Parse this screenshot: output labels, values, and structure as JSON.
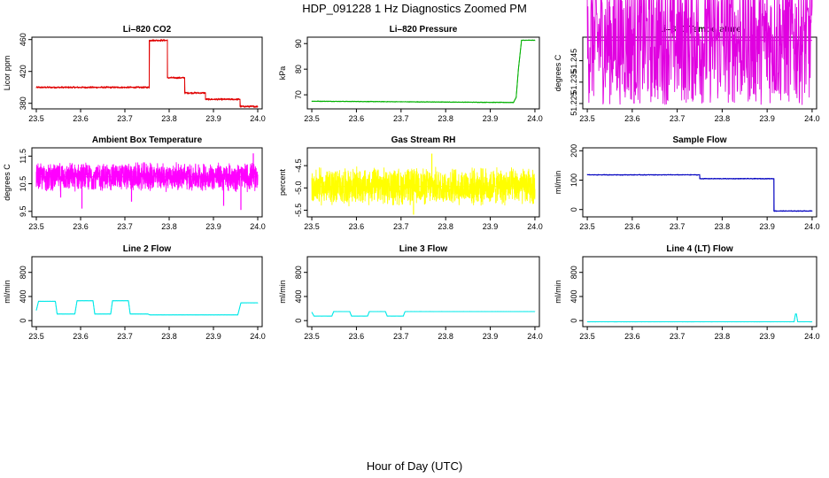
{
  "figure": {
    "title": "HDP_091228  1 Hz Diagnostics Zoomed PM",
    "xlabel": "Hour of Day (UTC)"
  },
  "chart_data": [
    {
      "type": "line",
      "title": "Li–820 CO2",
      "xlabel": "",
      "ylabel": "Licor ppm",
      "color": "#e00000",
      "noise": 1.2,
      "xlim": [
        23.49,
        24.01
      ],
      "xticks": [
        "23.5",
        "23.6",
        "23.7",
        "23.8",
        "23.9",
        "24.0"
      ],
      "ylim": [
        373,
        463
      ],
      "yticks": [
        "380",
        "420",
        "460"
      ],
      "series": [
        {
          "name": "",
          "x": [
            23.5,
            23.755,
            23.755,
            23.796,
            23.796,
            23.835,
            23.835,
            23.882,
            23.882,
            23.96,
            23.96,
            24.0
          ],
          "y": [
            400,
            400,
            459,
            459,
            412,
            412,
            393,
            393,
            385,
            385,
            376,
            376
          ]
        }
      ],
      "spikes": []
    },
    {
      "type": "line",
      "title": "Li–820 Pressure",
      "xlabel": "",
      "ylabel": "kPa",
      "color": "#00b000",
      "noise": 0.15,
      "xlim": [
        23.49,
        24.01
      ],
      "xticks": [
        "23.5",
        "23.6",
        "23.7",
        "23.8",
        "23.9",
        "24.0"
      ],
      "ylim": [
        64.5,
        92.5
      ],
      "yticks": [
        "70",
        "80",
        "90"
      ],
      "series": [
        {
          "name": "",
          "x": [
            23.5,
            23.952,
            23.958,
            23.963,
            23.97,
            24.0
          ],
          "y": [
            67.5,
            67,
            69,
            80,
            91.3,
            91.3
          ]
        }
      ],
      "spikes": []
    },
    {
      "type": "line",
      "title": "Li–820 Temperature",
      "xlabel": "",
      "ylabel": "degrees C",
      "color": "#e000e0",
      "noise": 0.03,
      "xlim": [
        23.49,
        24.01
      ],
      "xticks": [
        "23.5",
        "23.6",
        "23.7",
        "23.8",
        "23.9",
        "24.0"
      ],
      "ylim": [
        51.2225,
        51.256
      ],
      "yticks": [
        "51.225",
        "51.235",
        "51.245"
      ],
      "series": [
        {
          "name": "",
          "x": [
            23.5,
            24.0
          ],
          "y": [
            51.2545,
            51.2545
          ]
        }
      ],
      "spikes": [
        {
          "x": 23.604,
          "y": 51.225
        },
        {
          "x": 23.605,
          "y": 51.2305
        }
      ]
    },
    {
      "type": "line",
      "title": "Ambient Box Temperature",
      "xlabel": "",
      "ylabel": "degrees C",
      "color": "#ff00ff",
      "noise": 0.55,
      "noise_mode": "band",
      "xlim": [
        23.49,
        24.01
      ],
      "xticks": [
        "23.5",
        "23.6",
        "23.7",
        "23.8",
        "23.9",
        "24.0"
      ],
      "ylim": [
        9.3,
        11.8
      ],
      "yticks": [
        "9.5",
        "10.5",
        "11.5"
      ],
      "series": [
        {
          "name": "",
          "x": [
            23.5,
            24.0
          ],
          "y": [
            10.75,
            10.75
          ]
        }
      ],
      "spikes": [
        {
          "x": 23.555,
          "y": 10.0
        },
        {
          "x": 23.603,
          "y": 9.6
        },
        {
          "x": 23.715,
          "y": 9.85
        },
        {
          "x": 23.923,
          "y": 9.7
        },
        {
          "x": 23.962,
          "y": 9.55
        },
        {
          "x": 23.99,
          "y": 11.6
        }
      ]
    },
    {
      "type": "line",
      "title": "Gas Stream RH",
      "xlabel": "",
      "ylabel": "percent",
      "color": "#ffff00",
      "noise": 0.45,
      "noise_mode": "band",
      "xlim": [
        23.49,
        24.01
      ],
      "xticks": [
        "23.5",
        "23.6",
        "23.7",
        "23.8",
        "23.9",
        "24.0"
      ],
      "ylim": [
        -5.65,
        -4.1
      ],
      "yticks": [
        "-5.5",
        "-5.0",
        "-4.5"
      ],
      "series": [
        {
          "name": "",
          "x": [
            23.5,
            24.0
          ],
          "y": [
            -4.97,
            -4.97
          ]
        }
      ],
      "spikes": [
        {
          "x": 23.769,
          "y": -4.23
        },
        {
          "x": 23.728,
          "y": -5.6
        }
      ]
    },
    {
      "type": "line",
      "title": "Sample Flow",
      "xlabel": "",
      "ylabel": "ml/min",
      "color": "#0000c0",
      "noise": 1.5,
      "xlim": [
        23.49,
        24.01
      ],
      "xticks": [
        "23.5",
        "23.6",
        "23.7",
        "23.8",
        "23.9",
        "24.0"
      ],
      "ylim": [
        -25,
        210
      ],
      "yticks": [
        "0",
        "100",
        "200"
      ],
      "series": [
        {
          "name": "",
          "x": [
            23.5,
            23.75,
            23.75,
            23.915,
            23.915,
            24.0
          ],
          "y": [
            118,
            118,
            105,
            105,
            -5,
            -5
          ]
        }
      ],
      "spikes": []
    },
    {
      "type": "line",
      "title": "Line 2 Flow",
      "xlabel": "",
      "ylabel": "ml/min",
      "color": "#00e8e8",
      "noise": 2,
      "xlim": [
        23.49,
        24.01
      ],
      "xticks": [
        "23.5",
        "23.6",
        "23.7",
        "23.8",
        "23.9",
        "24.0"
      ],
      "ylim": [
        -100,
        1060
      ],
      "yticks": [
        "0",
        "400",
        "800"
      ],
      "series": [
        {
          "name": "",
          "x": [
            23.5,
            23.505,
            23.543,
            23.547,
            23.587,
            23.592,
            23.628,
            23.632,
            23.668,
            23.672,
            23.708,
            23.712,
            23.752,
            23.756,
            23.955,
            23.962,
            24.0
          ],
          "y": [
            170,
            320,
            320,
            110,
            110,
            330,
            330,
            110,
            110,
            330,
            330,
            110,
            110,
            95,
            95,
            295,
            295
          ]
        }
      ],
      "spikes": []
    },
    {
      "type": "line",
      "title": "Line 3 Flow",
      "xlabel": "",
      "ylabel": "ml/min",
      "color": "#00e8e8",
      "noise": 2,
      "xlim": [
        23.49,
        24.01
      ],
      "xticks": [
        "23.5",
        "23.6",
        "23.7",
        "23.8",
        "23.9",
        "24.0"
      ],
      "ylim": [
        -100,
        1060
      ],
      "yticks": [
        "0",
        "400",
        "800"
      ],
      "series": [
        {
          "name": "",
          "x": [
            23.5,
            23.505,
            23.545,
            23.549,
            23.585,
            23.589,
            23.625,
            23.629,
            23.665,
            23.669,
            23.705,
            23.709,
            24.0
          ],
          "y": [
            140,
            75,
            75,
            150,
            150,
            75,
            75,
            150,
            150,
            75,
            75,
            150,
            150
          ]
        }
      ],
      "spikes": []
    },
    {
      "type": "line",
      "title": "Line 4 (LT) Flow",
      "xlabel": "",
      "ylabel": "ml/min",
      "color": "#00e8e8",
      "noise": 2,
      "xlim": [
        23.49,
        24.01
      ],
      "xticks": [
        "23.5",
        "23.6",
        "23.7",
        "23.8",
        "23.9",
        "24.0"
      ],
      "ylim": [
        -100,
        1060
      ],
      "yticks": [
        "0",
        "400",
        "800"
      ],
      "series": [
        {
          "name": "",
          "x": [
            23.5,
            23.96,
            23.963,
            23.965,
            23.968,
            24.0
          ],
          "y": [
            -20,
            -20,
            110,
            110,
            -20,
            -20
          ]
        }
      ],
      "spikes": []
    }
  ]
}
